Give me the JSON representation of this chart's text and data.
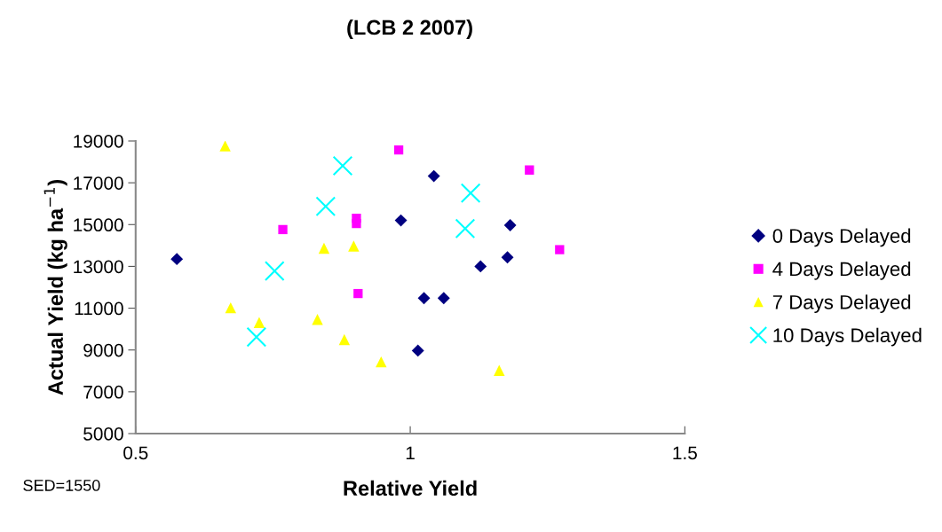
{
  "chart_data": {
    "type": "scatter",
    "title": "(LCB 2 2007)",
    "xlabel": "Relative Yield",
    "ylabel": "Actual Yield (kg ha$^{−1}$)",
    "annotations": [
      "SED=1550"
    ],
    "xlim": [
      0.5,
      1.5
    ],
    "xticks": [
      0.5,
      1,
      1.5
    ],
    "ylim": [
      5000,
      19000
    ],
    "yticks": [
      5000,
      7000,
      9000,
      11000,
      13000,
      15000,
      17000,
      19000
    ],
    "grid": false,
    "legend": "right",
    "series": [
      {
        "name": "0 Days Delayed",
        "color": "#000080",
        "marker": "diamond",
        "x": [
          0.575,
          0.983,
          1.043,
          1.182,
          1.177,
          1.128,
          1.025,
          1.061,
          1.014
        ],
        "values": [
          13350,
          15200,
          17320,
          14970,
          13430,
          13000,
          11480,
          11480,
          8970
        ]
      },
      {
        "name": "4 Days Delayed",
        "color": "#ff00ff",
        "marker": "square",
        "x": [
          0.979,
          0.768,
          0.902,
          0.902,
          0.905,
          1.217,
          1.272
        ],
        "values": [
          18570,
          14760,
          15300,
          15050,
          11700,
          17610,
          13800
        ]
      },
      {
        "name": "7 Days Delayed",
        "color": "#ffff00",
        "marker": "triangle",
        "x": [
          0.663,
          0.843,
          0.897,
          0.673,
          0.725,
          0.831,
          0.88,
          0.947,
          1.162
        ],
        "values": [
          18760,
          13870,
          13970,
          11020,
          10310,
          10460,
          9500,
          8430,
          8020
        ]
      },
      {
        "name": "10 Days Delayed",
        "color": "#00ffff",
        "marker": "cross",
        "x": [
          0.877,
          0.846,
          0.753,
          0.72,
          1.11,
          1.1
        ],
        "values": [
          17810,
          15870,
          12780,
          9620,
          16510,
          14810
        ]
      }
    ]
  }
}
